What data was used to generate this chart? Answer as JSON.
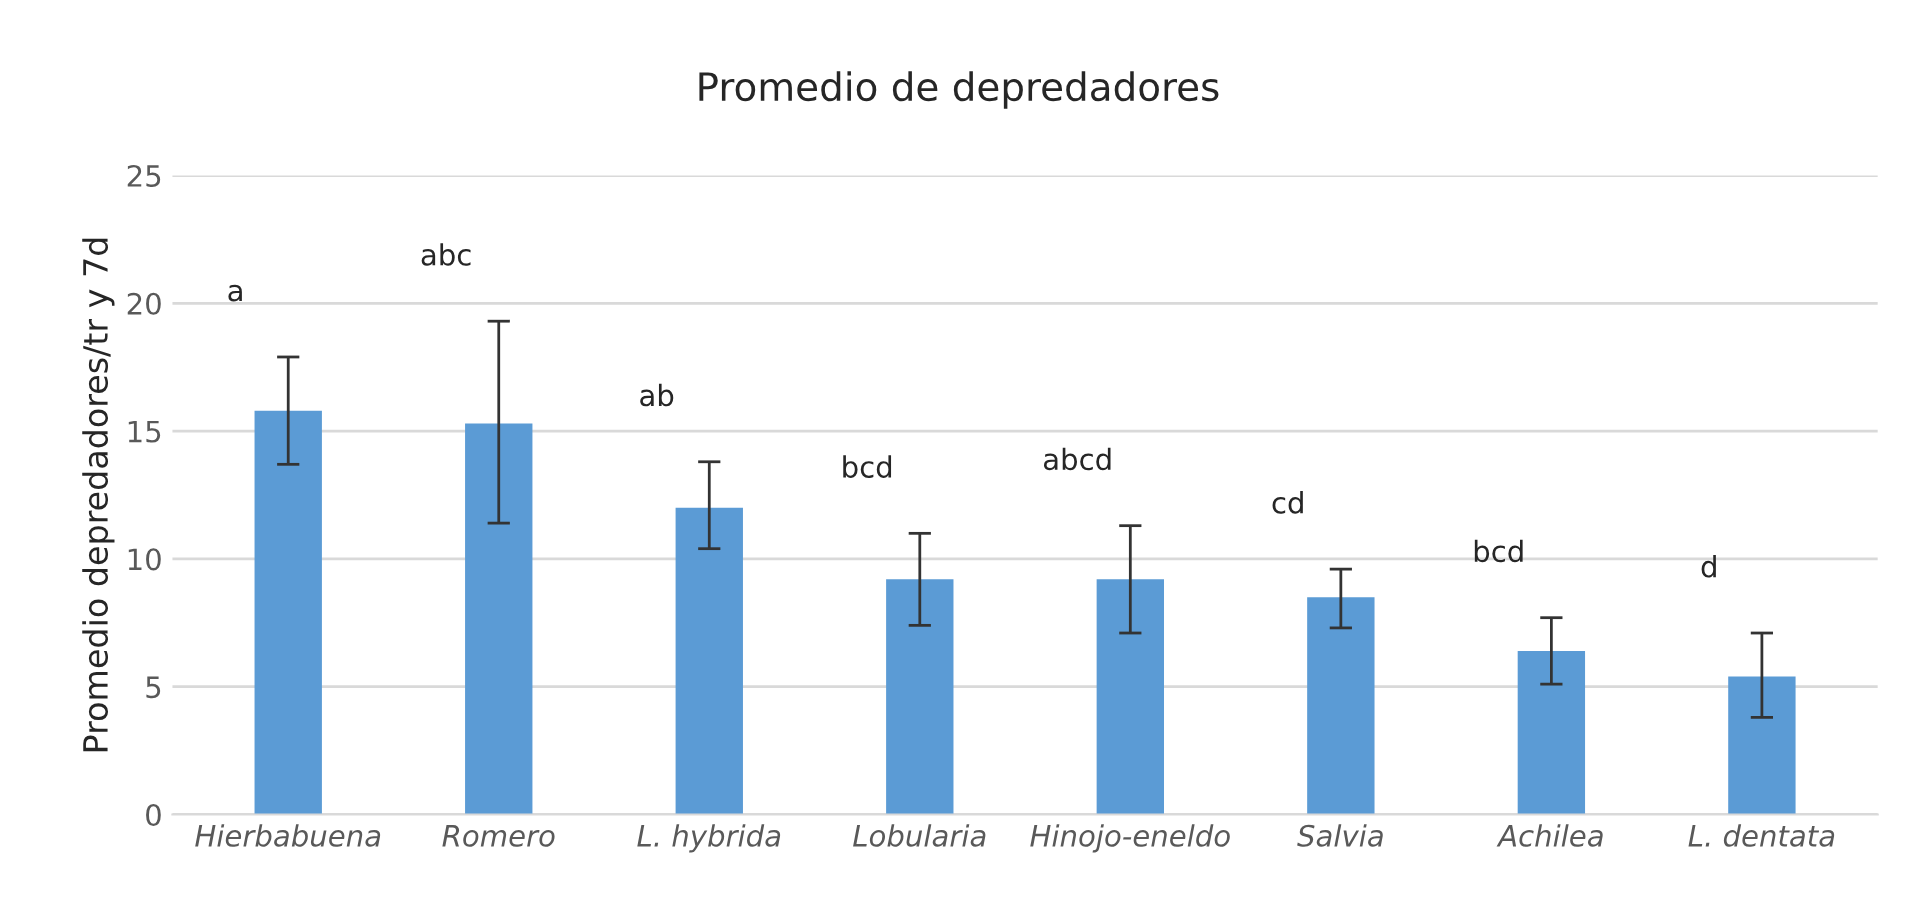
{
  "chart_data": {
    "type": "bar",
    "title": "Promedio de depredadores",
    "ylabel": "Promedio depredadores/tr y 7d",
    "categories": [
      "Hierbabuena",
      "Romero",
      "L. hybrida",
      "Lobularia",
      "Hinojo-eneldo",
      "Salvia",
      "Achilea",
      "L. dentata"
    ],
    "values": [
      15.8,
      15.3,
      12.0,
      9.2,
      9.2,
      8.5,
      6.4,
      5.4
    ],
    "errors": [
      [
        13.7,
        17.9
      ],
      [
        11.4,
        19.3
      ],
      [
        10.4,
        13.8
      ],
      [
        7.4,
        11.0
      ],
      [
        7.1,
        11.3
      ],
      [
        7.3,
        9.6
      ],
      [
        5.1,
        7.7
      ],
      [
        3.8,
        7.1
      ]
    ],
    "color": "#5b9bd5",
    "ylim": [
      0,
      25
    ],
    "yticks": [
      0,
      5,
      10,
      15,
      20,
      25
    ],
    "grid": "y",
    "annotations": [
      "a",
      "abc",
      "ab",
      "bcd",
      "abcd",
      "cd",
      "bcd",
      "d"
    ]
  }
}
